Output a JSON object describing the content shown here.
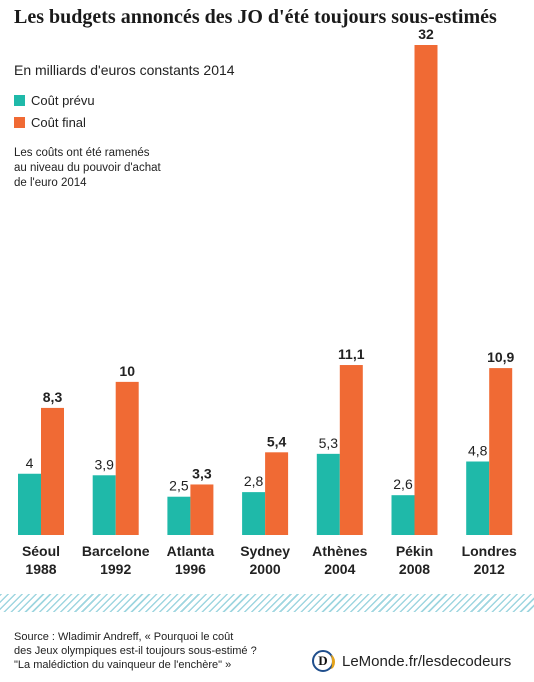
{
  "header": {
    "title": "Les budgets annoncés des JO d'été toujours sous-estimés",
    "subtitle": "En milliards d'euros constants 2014"
  },
  "legend": {
    "items": [
      {
        "label": "Coût prévu",
        "color": "#1fb9a9"
      },
      {
        "label": "Coût final",
        "color": "#f06a34"
      }
    ]
  },
  "note": "Les coûts ont été ramenés\nau niveau du pouvoir d'achat\nde l'euro 2014",
  "chart_data": {
    "type": "bar",
    "title": "Les budgets annoncés des JO d'été toujours sous-estimés",
    "subtitle": "En milliards d'euros constants 2014",
    "categories": [
      "Séoul\n1988",
      "Barcelone\n1992",
      "Atlanta\n1996",
      "Sydney\n2000",
      "Athènes\n2004",
      "Pékin\n2008",
      "Londres\n2012"
    ],
    "series": [
      {
        "name": "Coût prévu",
        "color": "#1fb9a9",
        "values": [
          4,
          3.9,
          2.5,
          2.8,
          5.3,
          2.6,
          4.8
        ],
        "labels": [
          "4",
          "3,9",
          "2,5",
          "2,8",
          "5,3",
          "2,6",
          "4,8"
        ]
      },
      {
        "name": "Coût final",
        "color": "#f06a34",
        "values": [
          8.3,
          10,
          3.3,
          5.4,
          11.1,
          32,
          10.9
        ],
        "labels": [
          "8,3",
          "10",
          "3,3",
          "5,4",
          "11,1",
          "32",
          "10,9"
        ]
      }
    ],
    "ylim": [
      0,
      32
    ],
    "grid": false,
    "legend_position": "top-left"
  },
  "footer": {
    "source": "Source : Wladimir Andreff, « Pourquoi le coût\ndes Jeux olympiques est-il toujours sous-estimé ?\n\"La malédiction du vainqueur de l'enchère\" »",
    "logo_letter": "D",
    "brand": "LeMonde.fr/lesdecodeurs"
  }
}
